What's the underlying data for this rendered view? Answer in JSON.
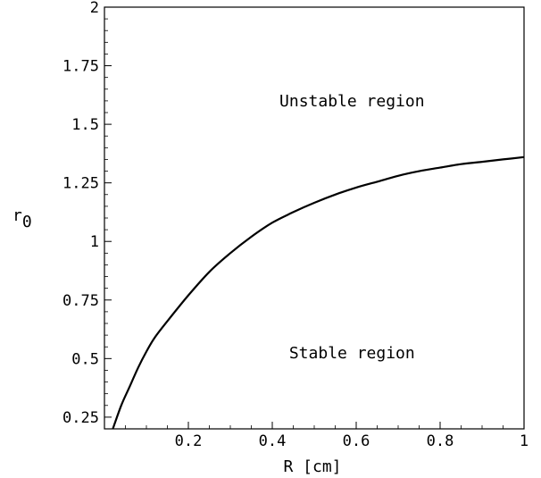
{
  "chart_data": {
    "type": "line",
    "xlabel": "R [cm]",
    "ylabel": "r",
    "ylabel_subscript": "0",
    "xlim": [
      0,
      1
    ],
    "ylim": [
      0.2,
      2
    ],
    "grid": false,
    "x_ticks": [
      {
        "value": 0.2,
        "label": "0.2"
      },
      {
        "value": 0.4,
        "label": "0.4"
      },
      {
        "value": 0.6,
        "label": "0.6"
      },
      {
        "value": 0.8,
        "label": "0.8"
      },
      {
        "value": 1.0,
        "label": "1"
      }
    ],
    "y_ticks": [
      {
        "value": 0.25,
        "label": "0.25"
      },
      {
        "value": 0.5,
        "label": "0.5"
      },
      {
        "value": 0.75,
        "label": "0.75"
      },
      {
        "value": 1.0,
        "label": "1"
      },
      {
        "value": 1.25,
        "label": "1.25"
      },
      {
        "value": 1.5,
        "label": "1.5"
      },
      {
        "value": 1.75,
        "label": "1.75"
      },
      {
        "value": 2.0,
        "label": "2"
      }
    ],
    "series": [
      {
        "color": "#000000",
        "x": [
          0.02,
          0.04,
          0.06,
          0.08,
          0.1,
          0.12,
          0.15,
          0.2,
          0.25,
          0.3,
          0.35,
          0.4,
          0.45,
          0.5,
          0.55,
          0.6,
          0.65,
          0.7,
          0.75,
          0.8,
          0.85,
          0.9,
          0.95,
          1.0
        ],
        "y": [
          0.2,
          0.3,
          0.38,
          0.46,
          0.53,
          0.59,
          0.66,
          0.77,
          0.87,
          0.95,
          1.02,
          1.08,
          1.125,
          1.165,
          1.2,
          1.23,
          1.255,
          1.28,
          1.3,
          1.315,
          1.33,
          1.34,
          1.35,
          1.36
        ]
      }
    ],
    "annotations": [
      {
        "text": "Unstable region",
        "x": 0.59,
        "y": 1.6
      },
      {
        "text": "Stable region",
        "x": 0.59,
        "y": 0.525
      }
    ]
  }
}
